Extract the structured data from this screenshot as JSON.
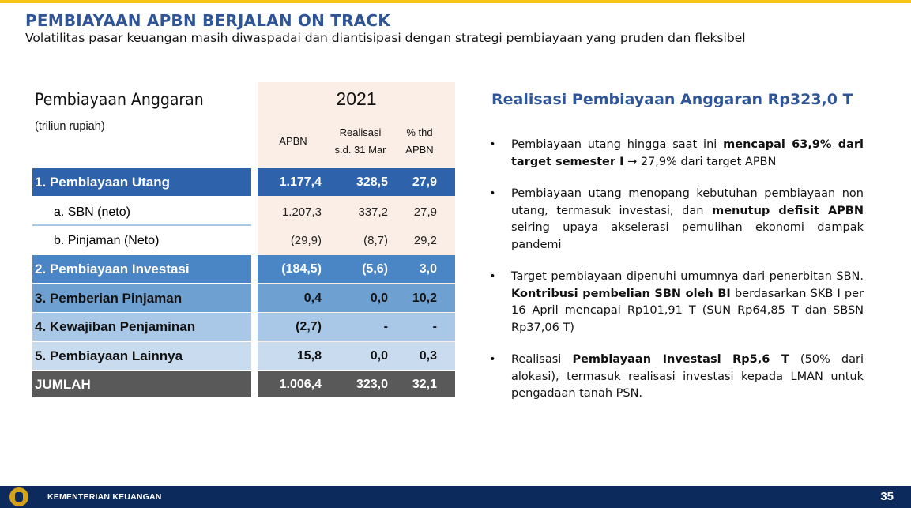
{
  "header": {
    "title": "PEMBIAYAAN APBN BERJALAN ON TRACK",
    "subtitle": "Volatilitas pasar keuangan masih diwaspadai dan diantisipasi dengan strategi pembiayaan yang pruden dan fleksibel"
  },
  "table": {
    "title": "Pembiayaan Anggaran",
    "unit": "(triliun rupiah)",
    "year": "2021",
    "columns": {
      "apbn": "APBN",
      "realisasi_1": "Realisasi",
      "realisasi_2": "s.d. 31 Mar",
      "pct_1": "% thd",
      "pct_2": "APBN"
    },
    "rows": [
      {
        "label": "1.  Pembiayaan Utang",
        "apbn": "1.177,4",
        "realisasi": "328,5",
        "pct": "27,9"
      },
      {
        "label": "a.  SBN (neto)",
        "apbn": "1.207,3",
        "realisasi": "337,2",
        "pct": "27,9"
      },
      {
        "label": "b.  Pinjaman (Neto)",
        "apbn": "(29,9)",
        "realisasi": "(8,7)",
        "pct": "29,2"
      },
      {
        "label": "2.  Pembiayaan Investasi",
        "apbn": "(184,5)",
        "realisasi": "(5,6)",
        "pct": "3,0"
      },
      {
        "label": "3.  Pemberian Pinjaman",
        "apbn": "0,4",
        "realisasi": "0,0",
        "pct": "10,2"
      },
      {
        "label": "4.  Kewajiban Penjaminan",
        "apbn": "(2,7)",
        "realisasi": "-",
        "pct": "-"
      },
      {
        "label": "5.  Pembiayaan Lainnya",
        "apbn": "15,8",
        "realisasi": "0,0",
        "pct": "0,3"
      },
      {
        "label": "JUMLAH",
        "apbn": "1.006,4",
        "realisasi": "323,0",
        "pct": "32,1"
      }
    ]
  },
  "right": {
    "title": "Realisasi Pembiayaan Anggaran Rp323,0 T",
    "bullet_glyph": "•",
    "bullets": [
      {
        "a": "Pembiayaan utang hingga saat ini ",
        "b": "mencapai 63,9% dari target semester I",
        "c": " → 27,9% dari target APBN"
      },
      {
        "a": "Pembiayaan utang menopang kebutuhan pembiayaan non utang, termasuk investasi, dan ",
        "b": "menutup defisit APBN",
        "c": " seiring upaya akselerasi pemulihan ekonomi dampak pandemi"
      },
      {
        "a": "Target pembiayaan dipenuhi umumnya dari penerbitan SBN. ",
        "b": "Kontribusi pembelian SBN oleh BI",
        "c": " berdasarkan SKB I per 16 April mencapai Rp101,91 T (SUN Rp64,85 T dan SBSN Rp37,06 T)"
      },
      {
        "a": "Realisasi ",
        "b": "Pembiayaan Investasi Rp5,6 T",
        "c": " (50% dari alokasi), termasuk realisasi investasi kepada LMAN untuk pengadaan tanah PSN."
      }
    ]
  },
  "footer": {
    "org": "KEMENTERIAN KEUANGAN",
    "page": "35"
  }
}
